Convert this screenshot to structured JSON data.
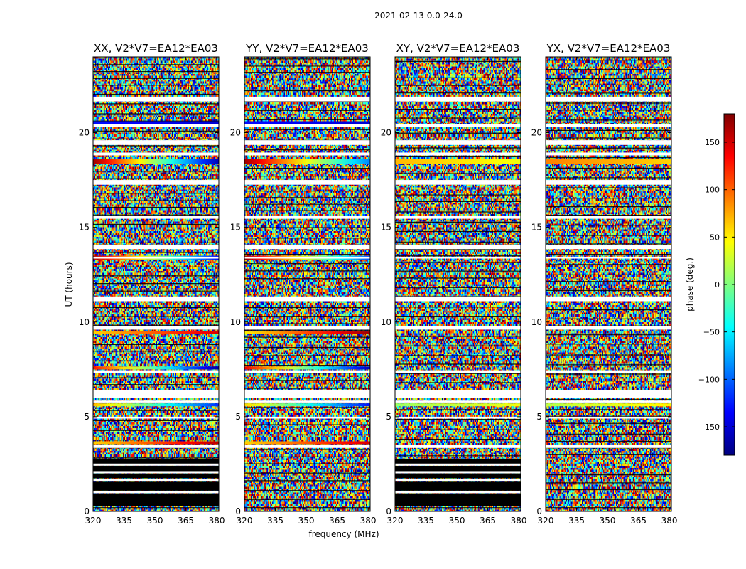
{
  "chart_data": {
    "type": "heatmap",
    "suptitle": "2021-02-13 0.0-24.0",
    "xlabel": "frequency (MHz)",
    "ylabel": "UT (hours)",
    "xlim": [
      320,
      381
    ],
    "ylim": [
      0,
      24
    ],
    "x_ticks": [
      320,
      335,
      350,
      365,
      380
    ],
    "y_ticks": [
      0,
      5,
      10,
      15,
      20
    ],
    "colorbar": {
      "label": "phase (deg.)",
      "range": [
        -180,
        180
      ],
      "ticks": [
        150,
        100,
        50,
        0,
        -50,
        -100,
        -150
      ],
      "tick_labels": [
        "150",
        "100",
        "50",
        "0",
        "−50",
        "−100",
        "−150"
      ],
      "colormap": "jet",
      "colors": [
        "#00007f",
        "#0000ff",
        "#007fff",
        "#00ffff",
        "#7fff7f",
        "#ffff00",
        "#ff7f00",
        "#ff0000",
        "#7f0000"
      ]
    },
    "gap_bands_hours": [
      [
        21.65,
        21.9
      ],
      [
        20.3,
        20.45
      ],
      [
        19.35,
        19.6
      ],
      [
        18.8,
        18.95
      ],
      [
        17.25,
        17.5
      ],
      [
        15.45,
        15.6
      ],
      [
        13.85,
        14.05
      ],
      [
        13.35,
        13.45
      ],
      [
        11.1,
        11.35
      ],
      [
        9.6,
        9.8
      ],
      [
        7.3,
        7.45
      ],
      [
        6.0,
        6.4
      ],
      [
        5.75,
        5.85
      ],
      [
        4.9,
        5.0
      ],
      [
        3.35,
        3.5
      ]
    ],
    "flagged_black_bands_hours": [
      [
        0.3,
        0.95
      ],
      [
        1.1,
        1.6
      ],
      [
        1.75,
        2.0
      ],
      [
        2.1,
        2.4
      ],
      [
        2.5,
        2.75
      ]
    ],
    "panels": [
      {
        "title": "XX, V2*V7=EA12*EA03",
        "flagged_low_times": true,
        "coherent_bands": [
          {
            "t0": 18.35,
            "t1": 18.6,
            "phase_start": 170,
            "phase_end": -160
          },
          {
            "t0": 13.3,
            "t1": 13.5,
            "phase_start": 165,
            "phase_end": -140
          },
          {
            "t0": 9.35,
            "t1": 9.5,
            "phase_start": 60,
            "phase_end": 150
          },
          {
            "t0": 7.5,
            "t1": 7.65,
            "phase_start": 130,
            "phase_end": -170
          },
          {
            "t0": 5.55,
            "t1": 5.7,
            "phase_start": 70,
            "phase_end": -120
          },
          {
            "t0": 3.55,
            "t1": 3.7,
            "phase_start": 60,
            "phase_end": 160
          },
          {
            "t0": 20.45,
            "t1": 20.6,
            "phase_start": -130,
            "phase_end": -150
          }
        ]
      },
      {
        "title": "YY, V2*V7=EA12*EA03",
        "flagged_low_times": false,
        "coherent_bands": [
          {
            "t0": 18.35,
            "t1": 18.6,
            "phase_start": 170,
            "phase_end": -90
          },
          {
            "t0": 13.3,
            "t1": 13.5,
            "phase_start": 170,
            "phase_end": -110
          },
          {
            "t0": 9.35,
            "t1": 9.5,
            "phase_start": 50,
            "phase_end": 170
          },
          {
            "t0": 7.5,
            "t1": 7.65,
            "phase_start": 140,
            "phase_end": -160
          },
          {
            "t0": 5.55,
            "t1": 5.7,
            "phase_start": 60,
            "phase_end": -130
          },
          {
            "t0": 3.55,
            "t1": 3.7,
            "phase_start": 60,
            "phase_end": 150
          },
          {
            "t0": 20.45,
            "t1": 20.6,
            "phase_start": -130,
            "phase_end": -150
          }
        ]
      },
      {
        "title": "XY, V2*V7=EA12*EA03",
        "flagged_low_times": true,
        "coherent_bands": [
          {
            "t0": 18.35,
            "t1": 18.6,
            "phase_start": 70,
            "phase_end": 40
          },
          {
            "t0": 5.55,
            "t1": 5.7,
            "phase_start": 10,
            "phase_end": 40
          }
        ]
      },
      {
        "title": "YX, V2*V7=EA12*EA03",
        "flagged_low_times": false,
        "coherent_bands": [
          {
            "t0": 18.35,
            "t1": 18.6,
            "phase_start": 90,
            "phase_end": 60
          },
          {
            "t0": 5.55,
            "t1": 5.7,
            "phase_start": 20,
            "phase_end": 50
          }
        ]
      }
    ]
  }
}
